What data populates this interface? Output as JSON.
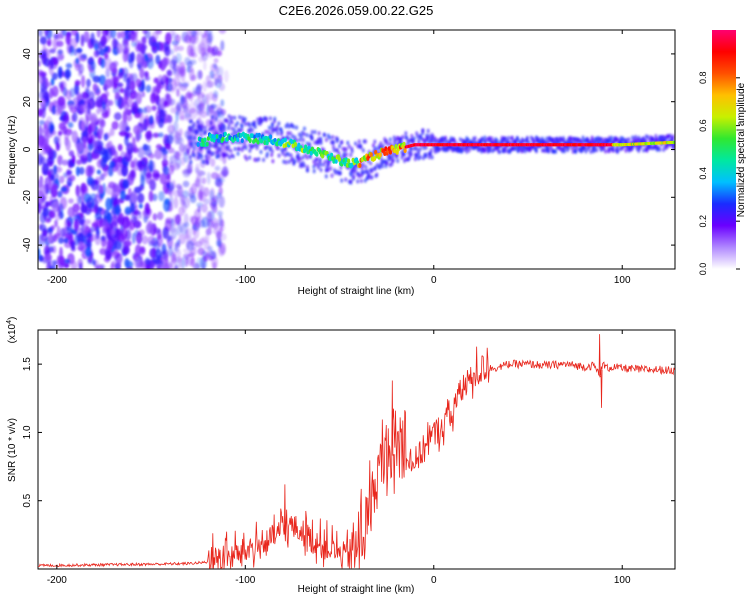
{
  "figure_title": "C2E6.2026.059.00.22.G25",
  "chart_data": [
    {
      "type": "heatmap",
      "title": "C2E6.2026.059.00.22.G25",
      "xlabel": "Height of straight line (km)",
      "ylabel": "Frequency (Hz)",
      "xlim": [
        -210,
        128
      ],
      "ylim": [
        -50,
        50
      ],
      "x_ticks": [
        -200,
        -100,
        0,
        100
      ],
      "y_ticks": [
        -40,
        -20,
        0,
        20,
        40
      ],
      "colorbar": {
        "label": "Normalized spectral amplitude",
        "range": [
          0,
          1
        ],
        "ticks": [
          0.0,
          0.2,
          0.4,
          0.6,
          0.8
        ],
        "colormap": [
          "#ffffff",
          "#b088ff",
          "#6a00ff",
          "#1a2cff",
          "#00c0ff",
          "#00e8a0",
          "#30e830",
          "#c8f000",
          "#ffc000",
          "#ff5000",
          "#ff0000",
          "#ff0070"
        ]
      },
      "description_of_ridge": [
        {
          "x": -120,
          "y": 5
        },
        {
          "x": -100,
          "y": 5
        },
        {
          "x": -85,
          "y": 4
        },
        {
          "x": -70,
          "y": 1
        },
        {
          "x": -55,
          "y": -3
        },
        {
          "x": -45,
          "y": -6
        },
        {
          "x": -38,
          "y": -5
        },
        {
          "x": -30,
          "y": -2
        },
        {
          "x": -20,
          "y": 0
        },
        {
          "x": -10,
          "y": 2
        },
        {
          "x": 0,
          "y": 2
        },
        {
          "x": 20,
          "y": 2
        },
        {
          "x": 60,
          "y": 2
        },
        {
          "x": 100,
          "y": 2
        },
        {
          "x": 128,
          "y": 3
        }
      ],
      "noise_region_x_max": -120
    },
    {
      "type": "line",
      "title": "",
      "xlabel": "Height of straight line (km)",
      "ylabel": "SNR (10 * v/v)",
      "y_multiplier": "(x10",
      "y_multiplier_exp": "4",
      "y_multiplier_close": ")",
      "xlim": [
        -210,
        128
      ],
      "ylim": [
        0,
        1.75
      ],
      "x_ticks": [
        -200,
        -100,
        0,
        100
      ],
      "y_ticks": [
        0.5,
        1.0,
        1.5
      ],
      "series_color": "#e8261c",
      "series": [
        {
          "name": "SNR",
          "x": [
            -210,
            -180,
            -150,
            -130,
            -120,
            -110,
            -100,
            -95,
            -90,
            -85,
            -80,
            -75,
            -70,
            -65,
            -60,
            -55,
            -50,
            -45,
            -40,
            -35,
            -30,
            -25,
            -20,
            -15,
            -10,
            -5,
            0,
            5,
            10,
            15,
            20,
            25,
            30,
            35,
            40,
            50,
            60,
            70,
            80,
            85,
            88,
            90,
            92,
            95,
            100,
            110,
            120,
            128
          ],
          "y": [
            0.015,
            0.02,
            0.025,
            0.03,
            0.04,
            0.05,
            0.1,
            0.12,
            0.15,
            0.2,
            0.25,
            0.28,
            0.24,
            0.18,
            0.14,
            0.12,
            0.08,
            0.06,
            0.07,
            0.3,
            0.6,
            0.8,
            0.85,
            0.8,
            0.75,
            0.85,
            0.95,
            1.02,
            1.12,
            1.28,
            1.35,
            1.42,
            1.47,
            1.48,
            1.5,
            1.5,
            1.49,
            1.5,
            1.48,
            1.49,
            1.42,
            1.5,
            1.47,
            1.48,
            1.47,
            1.46,
            1.46,
            1.45
          ]
        }
      ],
      "noise_amplitude": [
        {
          "x_from": -210,
          "x_to": -120,
          "amp": 0.02
        },
        {
          "x_from": -120,
          "x_to": -45,
          "amp": 0.2
        },
        {
          "x_from": -45,
          "x_to": -15,
          "amp": 0.45
        },
        {
          "x_from": -15,
          "x_to": 30,
          "amp": 0.22
        },
        {
          "x_from": 30,
          "x_to": 128,
          "amp": 0.06
        }
      ],
      "spikes": [
        {
          "x": -22,
          "y": 1.38
        },
        {
          "x": -21,
          "y": 0.55
        },
        {
          "x": -79,
          "y": 0.62
        },
        {
          "x": 88,
          "y": 1.72
        },
        {
          "x": 89,
          "y": 1.18
        }
      ]
    }
  ]
}
